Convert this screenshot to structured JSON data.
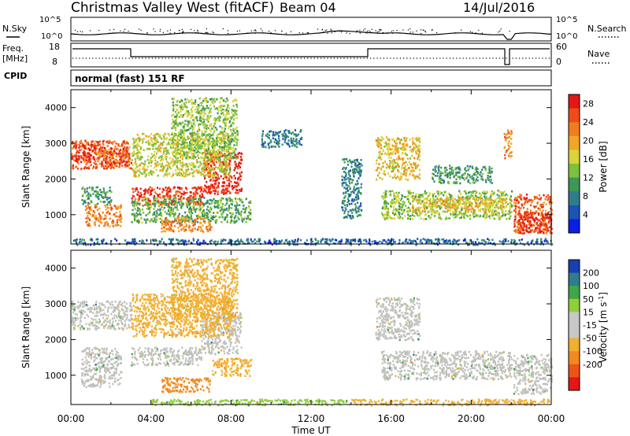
{
  "header": {
    "station": "Christmas Valley West (fitACF)",
    "beam": "Beam 04",
    "date": "14/Jul/2016"
  },
  "noise_panel": {
    "left_label": "N.Sky",
    "left_ticks": [
      "10^5",
      "10^0"
    ],
    "right_label": "N.Search",
    "right_ticks": [
      "10^5",
      "10^0"
    ]
  },
  "freq_panel": {
    "left_label_1": "Freq.",
    "left_label_2": "[MHz]",
    "left_ticks": [
      "18",
      "8"
    ],
    "right_label": "Nave",
    "right_ticks": [
      "60",
      "0"
    ]
  },
  "cpid": {
    "label": "CPID",
    "value": "normal (fast) 151 RF"
  },
  "colors": {
    "power_scale": [
      "#0a1ee6",
      "#1a55b3",
      "#2f7d8c",
      "#3f9656",
      "#7fc03a",
      "#d8d43a",
      "#f2a626",
      "#f07d1d",
      "#ee4b18",
      "#e51616"
    ],
    "velocity_scale": [
      "#e51616",
      "#ee5418",
      "#f08a1f",
      "#f2b030",
      "#c8c8c8",
      "#c8c8c8",
      "#8fcf3a",
      "#3fa64a",
      "#2f7d8c",
      "#1a3fb0"
    ],
    "ground_scatter": "#c0c0bc"
  },
  "chart_data": [
    {
      "type": "heatmap",
      "panel": "power",
      "ylabel": "Slant Range [km]",
      "ylim": [
        180,
        4500
      ],
      "y_ticks": [
        "1000",
        "2000",
        "3000",
        "4000"
      ],
      "x_ticks": [
        "00:00",
        "04:00",
        "08:00",
        "12:00",
        "16:00",
        "20:00",
        "00:00"
      ],
      "xlim_hours": [
        0,
        24
      ],
      "colorbar_label": "Power [dB]",
      "colorbar_ticks": [
        "4",
        "8",
        "12",
        "16",
        "20",
        "24",
        "28"
      ],
      "colorbar_range": [
        0,
        30
      ],
      "features": [
        {
          "hours": [
            0,
            3
          ],
          "range_km": [
            2300,
            3100
          ],
          "value": 24
        },
        {
          "hours": [
            0.2,
            1.2
          ],
          "range_km": [
            2500,
            3000
          ],
          "value": 28
        },
        {
          "hours": [
            1.5,
            2.9
          ],
          "range_km": [
            2400,
            2900
          ],
          "value": 26
        },
        {
          "hours": [
            0.5,
            2
          ],
          "range_km": [
            1300,
            1800
          ],
          "value": 10
        },
        {
          "hours": [
            0.7,
            2.5
          ],
          "range_km": [
            700,
            1300
          ],
          "value": 22
        },
        {
          "hours": [
            3,
            6.6
          ],
          "range_km": [
            1300,
            1800
          ],
          "value": 26
        },
        {
          "hours": [
            6.6,
            8.5
          ],
          "range_km": [
            1600,
            2800
          ],
          "value": 28
        },
        {
          "hours": [
            3,
            8
          ],
          "range_km": [
            2100,
            3300
          ],
          "value": 16
        },
        {
          "hours": [
            5,
            8.3
          ],
          "range_km": [
            2600,
            4300
          ],
          "value": 14
        },
        {
          "hours": [
            3,
            9
          ],
          "range_km": [
            800,
            1500
          ],
          "value": 12
        },
        {
          "hours": [
            4.5,
            7
          ],
          "range_km": [
            550,
            950
          ],
          "value": 22
        },
        {
          "hours": [
            9.5,
            11.5
          ],
          "range_km": [
            2900,
            3400
          ],
          "value": 8
        },
        {
          "hours": [
            13.5,
            14.5
          ],
          "range_km": [
            900,
            2600
          ],
          "value": 8
        },
        {
          "hours": [
            15.2,
            17.4
          ],
          "range_km": [
            2000,
            3200
          ],
          "value": 18
        },
        {
          "hours": [
            15.5,
            22
          ],
          "range_km": [
            900,
            1700
          ],
          "value": 14
        },
        {
          "hours": [
            17,
            22
          ],
          "range_km": [
            1100,
            1500
          ],
          "value": 18
        },
        {
          "hours": [
            18,
            21
          ],
          "range_km": [
            1900,
            2400
          ],
          "value": 10
        },
        {
          "hours": [
            21.6,
            22
          ],
          "range_km": [
            2600,
            3400
          ],
          "value": 22
        },
        {
          "hours": [
            22.1,
            24
          ],
          "range_km": [
            500,
            1600
          ],
          "value": 24
        },
        {
          "hours": [
            22.3,
            24
          ],
          "range_km": [
            500,
            1100
          ],
          "value": 28
        },
        {
          "hours": [
            0,
            24
          ],
          "range_km": [
            180,
            350
          ],
          "value": 6
        }
      ]
    },
    {
      "type": "heatmap",
      "panel": "velocity",
      "ylabel": "Slant Range [km]",
      "ylim": [
        180,
        4500
      ],
      "y_ticks": [
        "1000",
        "2000",
        "3000",
        "4000"
      ],
      "x_ticks": [
        "00:00",
        "04:00",
        "08:00",
        "12:00",
        "16:00",
        "20:00",
        "00:00"
      ],
      "xlabel": "Time UT",
      "xlim_hours": [
        0,
        24
      ],
      "colorbar_label_main": "Velocity [m s",
      "colorbar_label_exp": "-1",
      "colorbar_label_end": "]",
      "colorbar_ticks": [
        "200",
        "100",
        "50",
        "15",
        "-15",
        "-50",
        "-100",
        "-200"
      ],
      "features": [
        {
          "hours": [
            0,
            3
          ],
          "range_km": [
            2300,
            3100
          ],
          "value": 0
        },
        {
          "hours": [
            0.5,
            2.5
          ],
          "range_km": [
            1300,
            1800
          ],
          "value": 0
        },
        {
          "hours": [
            0.5,
            2.5
          ],
          "range_km": [
            700,
            1300
          ],
          "value": 0
        },
        {
          "hours": [
            3,
            6.5
          ],
          "range_km": [
            1300,
            1800
          ],
          "value": 0
        },
        {
          "hours": [
            6.5,
            8.5
          ],
          "range_km": [
            1600,
            2800
          ],
          "value": 0
        },
        {
          "hours": [
            5,
            8.3
          ],
          "range_km": [
            2600,
            4300
          ],
          "value": -60
        },
        {
          "hours": [
            3,
            8
          ],
          "range_km": [
            2100,
            3300
          ],
          "value": -60
        },
        {
          "hours": [
            4.5,
            7
          ],
          "range_km": [
            550,
            950
          ],
          "value": -110
        },
        {
          "hours": [
            7,
            9
          ],
          "range_km": [
            1000,
            1500
          ],
          "value": -80
        },
        {
          "hours": [
            15.2,
            17.4
          ],
          "range_km": [
            2000,
            3200
          ],
          "value": 0
        },
        {
          "hours": [
            15.5,
            22
          ],
          "range_km": [
            900,
            1700
          ],
          "value": 0
        },
        {
          "hours": [
            22.1,
            24
          ],
          "range_km": [
            500,
            1600
          ],
          "value": 0
        },
        {
          "hours": [
            4,
            14
          ],
          "range_km": [
            180,
            350
          ],
          "value": 40
        },
        {
          "hours": [
            14,
            24
          ],
          "range_km": [
            180,
            350
          ],
          "value": -60
        }
      ]
    }
  ],
  "footer": {
    "xlabel": "Time UT"
  }
}
